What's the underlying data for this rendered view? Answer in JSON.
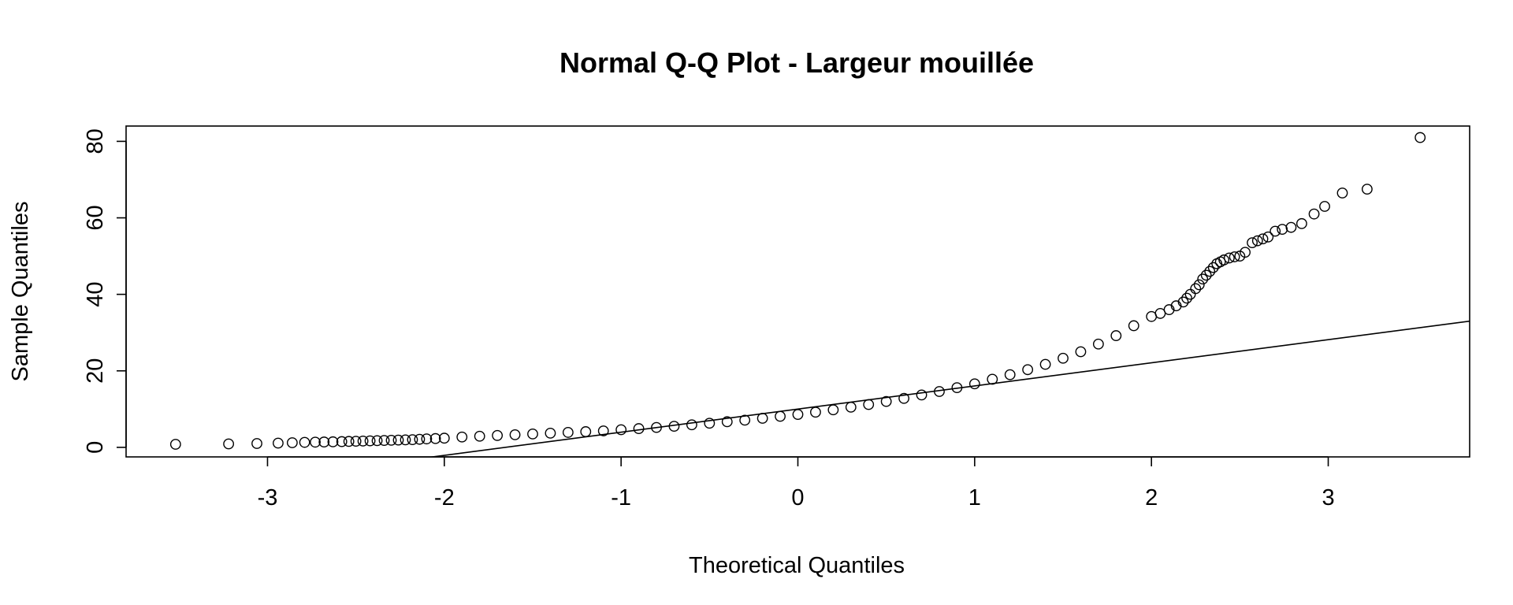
{
  "chart_data": {
    "type": "scatter",
    "title": "Normal Q-Q Plot - Largeur mouillée",
    "xlabel": "Theoretical Quantiles",
    "ylabel": "Sample Quantiles",
    "xlim": [
      -3.8,
      3.8
    ],
    "ylim": [
      -2.5,
      84
    ],
    "x_ticks": [
      -3,
      -2,
      -1,
      0,
      1,
      2,
      3
    ],
    "y_ticks": [
      0,
      20,
      40,
      60,
      80
    ],
    "x_tick_labels": [
      "-3",
      "-2",
      "-1",
      "0",
      "1",
      "2",
      "3"
    ],
    "y_tick_labels": [
      "0",
      "20",
      "40",
      "60",
      "80"
    ],
    "grid": false,
    "legend": "none",
    "marker": "open-circle",
    "reference_line": {
      "intercept": 10.0,
      "slope": 6.05
    },
    "series": [
      {
        "x": [
          -3.52,
          -3.22,
          -3.06,
          -2.94,
          -2.86,
          -2.79,
          -2.73,
          -2.68,
          -2.63,
          -2.58,
          -2.54,
          -2.5,
          -2.46,
          -2.42,
          -2.38,
          -2.34,
          -2.3,
          -2.26,
          -2.22,
          -2.18,
          -2.14,
          -2.1,
          -2.05,
          -2.0,
          -1.9,
          -1.8,
          -1.7,
          -1.6,
          -1.5,
          -1.4,
          -1.3,
          -1.2,
          -1.1,
          -1.0,
          -0.9,
          -0.8,
          -0.7,
          -0.6,
          -0.5,
          -0.4,
          -0.3,
          -0.2,
          -0.1,
          0.0,
          0.1,
          0.2,
          0.3,
          0.4,
          0.5,
          0.6,
          0.7,
          0.8,
          0.9,
          1.0,
          1.1,
          1.2,
          1.3,
          1.4,
          1.5,
          1.6,
          1.7,
          1.8,
          1.9,
          2.0,
          2.05,
          2.1,
          2.14,
          2.18,
          2.2,
          2.22,
          2.25,
          2.27,
          2.29,
          2.31,
          2.33,
          2.35,
          2.37,
          2.39,
          2.41,
          2.44,
          2.47,
          2.5,
          2.53,
          2.57,
          2.6,
          2.63,
          2.66,
          2.7,
          2.74,
          2.79,
          2.85,
          2.92,
          2.98,
          3.08,
          3.22,
          3.52
        ],
        "y": [
          0.8,
          0.9,
          1.0,
          1.1,
          1.2,
          1.3,
          1.35,
          1.4,
          1.45,
          1.5,
          1.55,
          1.6,
          1.65,
          1.7,
          1.75,
          1.8,
          1.85,
          1.9,
          1.95,
          2.0,
          2.1,
          2.2,
          2.3,
          2.4,
          2.7,
          2.9,
          3.1,
          3.3,
          3.5,
          3.7,
          3.9,
          4.1,
          4.3,
          4.6,
          4.9,
          5.2,
          5.5,
          5.9,
          6.3,
          6.7,
          7.1,
          7.6,
          8.1,
          8.6,
          9.2,
          9.8,
          10.5,
          11.2,
          12.0,
          12.8,
          13.7,
          14.6,
          15.6,
          16.6,
          17.8,
          19.0,
          20.3,
          21.7,
          23.3,
          25.0,
          27.0,
          29.2,
          31.8,
          34.2,
          35.0,
          36.0,
          37.0,
          38.0,
          39.0,
          40.0,
          41.5,
          42.5,
          44.0,
          45.0,
          46.0,
          47.0,
          48.0,
          48.5,
          49.0,
          49.5,
          49.8,
          50.0,
          51.0,
          53.5,
          54.0,
          54.5,
          55.0,
          56.5,
          57.0,
          57.5,
          58.5,
          61.0,
          63.0,
          66.5,
          67.5,
          81.0
        ]
      }
    ]
  }
}
